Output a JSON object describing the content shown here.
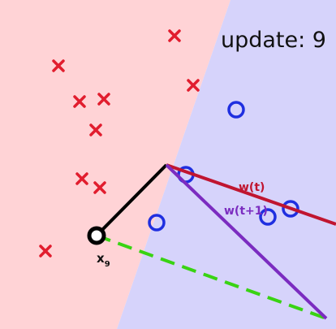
{
  "title": "update: 9",
  "colors": {
    "negative_region": "#ffd3d6",
    "positive_region": "#d6d3fb",
    "negative_marker": "#e11d2e",
    "positive_marker": "#1f2fe0",
    "w_t": "#c01530",
    "w_t1": "#7b2cc0",
    "update_vector": "#39d313",
    "input_vector": "#000000"
  },
  "labels": {
    "w_t": "w(t)",
    "w_t1": "w(t+1)",
    "x_main": "x",
    "x_sub": "9"
  },
  "negative_points_count": 10,
  "positive_points_count": 5
}
